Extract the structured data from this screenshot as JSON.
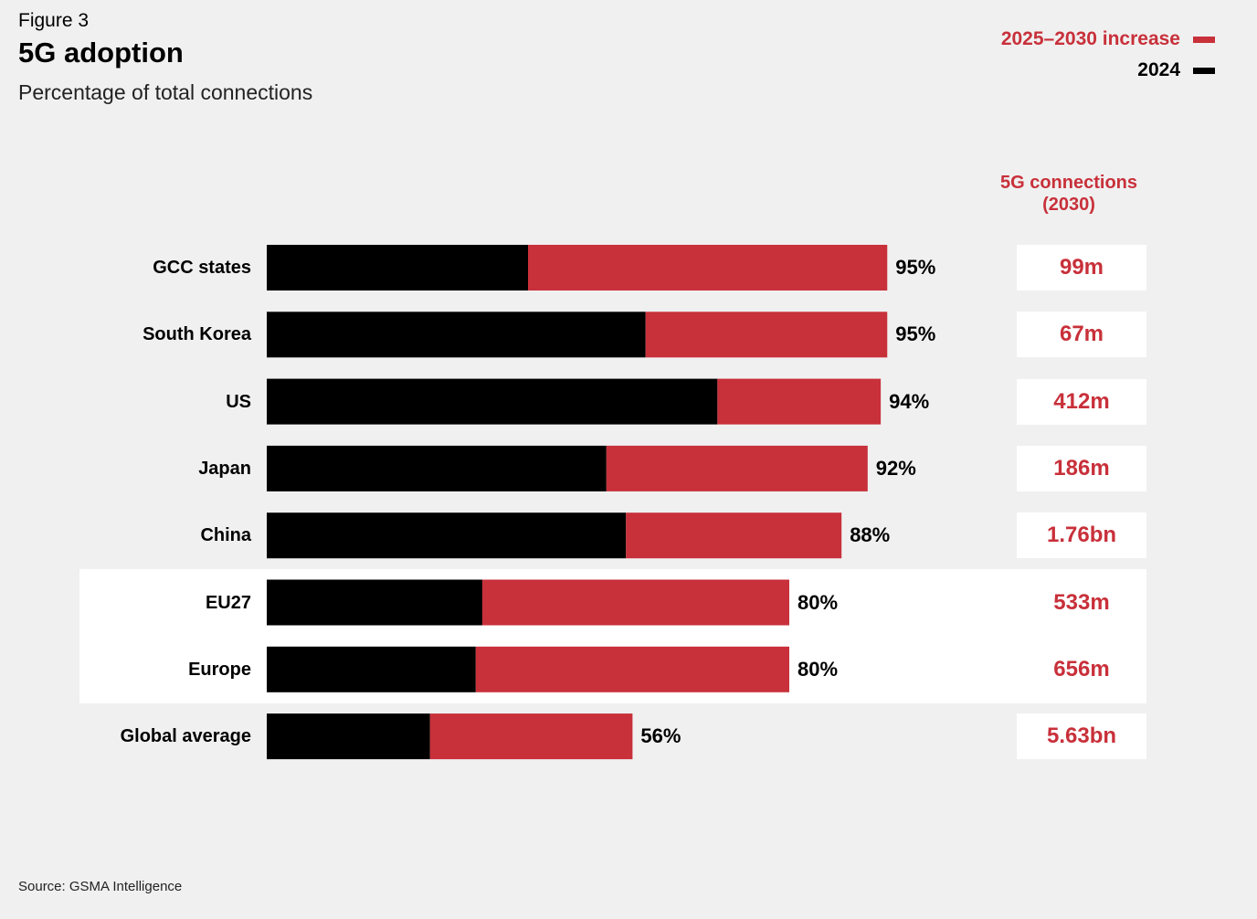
{
  "figure_label": "Figure 3",
  "title": "5G adoption",
  "subtitle": "Percentage of total connections",
  "legend": {
    "increase_label": "2025–2030 increase",
    "base_label": "2024"
  },
  "colors": {
    "base": "#000000",
    "increase": "#c8303a",
    "highlight_text": "#c8303a"
  },
  "connections_header": {
    "line1": "5G connections",
    "line2": "(2030)"
  },
  "source": "Source: GSMA Intelligence",
  "chart_data": {
    "type": "bar",
    "orientation": "horizontal",
    "stacked": true,
    "title": "5G adoption",
    "subtitle": "Percentage of total connections",
    "categories": [
      "GCC states",
      "South Korea",
      "US",
      "Japan",
      "China",
      "EU27",
      "Europe",
      "Global average"
    ],
    "series": [
      {
        "name": "2024",
        "values": [
          40,
          58,
          69,
          52,
          55,
          33,
          32,
          25
        ]
      },
      {
        "name": "2025–2030 increase",
        "values": [
          55,
          37,
          25,
          40,
          33,
          47,
          48,
          31
        ]
      }
    ],
    "totals": [
      95,
      95,
      94,
      92,
      88,
      80,
      80,
      56
    ],
    "total_labels": [
      "95%",
      "95%",
      "94%",
      "92%",
      "88%",
      "80%",
      "80%",
      "56%"
    ],
    "connections_2030": [
      "99m",
      "67m",
      "412m",
      "186m",
      "1.76bn",
      "533m",
      "656m",
      "5.63bn"
    ],
    "highlighted_rows": [
      "EU27",
      "Europe"
    ],
    "xlim": [
      0,
      100
    ],
    "legend_position": "top-right",
    "grid": false
  }
}
